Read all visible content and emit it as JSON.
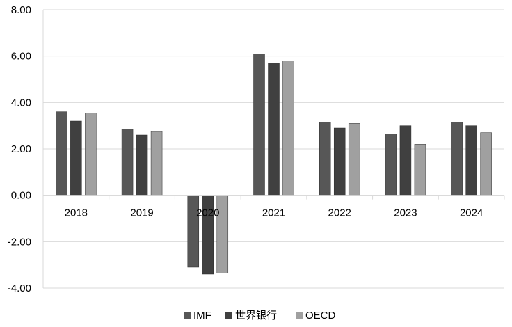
{
  "chart_data": {
    "type": "bar",
    "categories": [
      "2018",
      "2019",
      "2020",
      "2021",
      "2022",
      "2023",
      "2024"
    ],
    "series": [
      {
        "name": "IMF",
        "color": "#575757",
        "values": [
          3.6,
          2.85,
          -3.1,
          6.1,
          3.15,
          2.65,
          3.15
        ]
      },
      {
        "name": "世界银行",
        "color": "#404040",
        "values": [
          3.2,
          2.6,
          -3.4,
          5.7,
          2.9,
          3.0,
          3.0
        ]
      },
      {
        "name": "OECD",
        "color": "#a0a0a0",
        "values": [
          3.55,
          2.75,
          -3.35,
          5.8,
          3.1,
          2.2,
          2.7
        ]
      }
    ],
    "yticks": [
      "-4.00",
      "-2.00",
      "0.00",
      "2.00",
      "4.00",
      "6.00",
      "8.00"
    ],
    "ylim": [
      -4,
      8
    ],
    "grid": true,
    "legend_position": "bottom"
  }
}
